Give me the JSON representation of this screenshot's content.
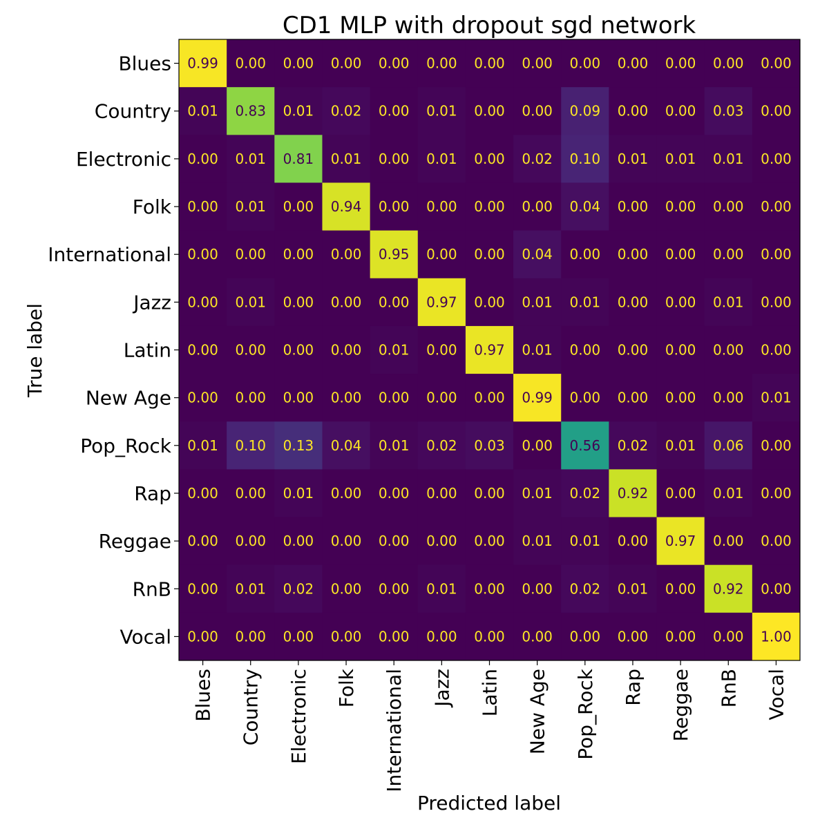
{
  "chart_data": {
    "type": "heatmap",
    "title": "CD1 MLP with dropout sgd network",
    "xlabel": "Predicted label",
    "ylabel": "True label",
    "colormap": "viridis",
    "value_range": [
      0,
      1
    ],
    "grid": false,
    "categories": [
      "Blues",
      "Country",
      "Electronic",
      "Folk",
      "International",
      "Jazz",
      "Latin",
      "New Age",
      "Pop_Rock",
      "Rap",
      "Reggae",
      "RnB",
      "Vocal"
    ],
    "matrix": [
      [
        0.99,
        0.0,
        0.0,
        0.0,
        0.0,
        0.0,
        0.0,
        0.0,
        0.0,
        0.0,
        0.0,
        0.0,
        0.0
      ],
      [
        0.01,
        0.83,
        0.01,
        0.02,
        0.0,
        0.01,
        0.0,
        0.0,
        0.09,
        0.0,
        0.0,
        0.03,
        0.0
      ],
      [
        0.0,
        0.01,
        0.81,
        0.01,
        0.0,
        0.01,
        0.0,
        0.02,
        0.1,
        0.01,
        0.01,
        0.01,
        0.0
      ],
      [
        0.0,
        0.01,
        0.0,
        0.94,
        0.0,
        0.0,
        0.0,
        0.0,
        0.04,
        0.0,
        0.0,
        0.0,
        0.0
      ],
      [
        0.0,
        0.0,
        0.0,
        0.0,
        0.95,
        0.0,
        0.0,
        0.04,
        0.0,
        0.0,
        0.0,
        0.0,
        0.0
      ],
      [
        0.0,
        0.01,
        0.0,
        0.0,
        0.0,
        0.97,
        0.0,
        0.01,
        0.01,
        0.0,
        0.0,
        0.01,
        0.0
      ],
      [
        0.0,
        0.0,
        0.0,
        0.0,
        0.01,
        0.0,
        0.97,
        0.01,
        0.0,
        0.0,
        0.0,
        0.0,
        0.0
      ],
      [
        0.0,
        0.0,
        0.0,
        0.0,
        0.0,
        0.0,
        0.0,
        0.99,
        0.0,
        0.0,
        0.0,
        0.0,
        0.01
      ],
      [
        0.01,
        0.1,
        0.13,
        0.04,
        0.01,
        0.02,
        0.03,
        0.0,
        0.56,
        0.02,
        0.01,
        0.06,
        0.0
      ],
      [
        0.0,
        0.0,
        0.01,
        0.0,
        0.0,
        0.0,
        0.0,
        0.01,
        0.02,
        0.92,
        0.0,
        0.01,
        0.0
      ],
      [
        0.0,
        0.0,
        0.0,
        0.0,
        0.0,
        0.0,
        0.0,
        0.01,
        0.01,
        0.0,
        0.97,
        0.0,
        0.0
      ],
      [
        0.0,
        0.01,
        0.02,
        0.0,
        0.0,
        0.01,
        0.0,
        0.0,
        0.02,
        0.01,
        0.0,
        0.92,
        0.0
      ],
      [
        0.0,
        0.0,
        0.0,
        0.0,
        0.0,
        0.0,
        0.0,
        0.0,
        0.0,
        0.0,
        0.0,
        0.0,
        1.0
      ]
    ]
  }
}
